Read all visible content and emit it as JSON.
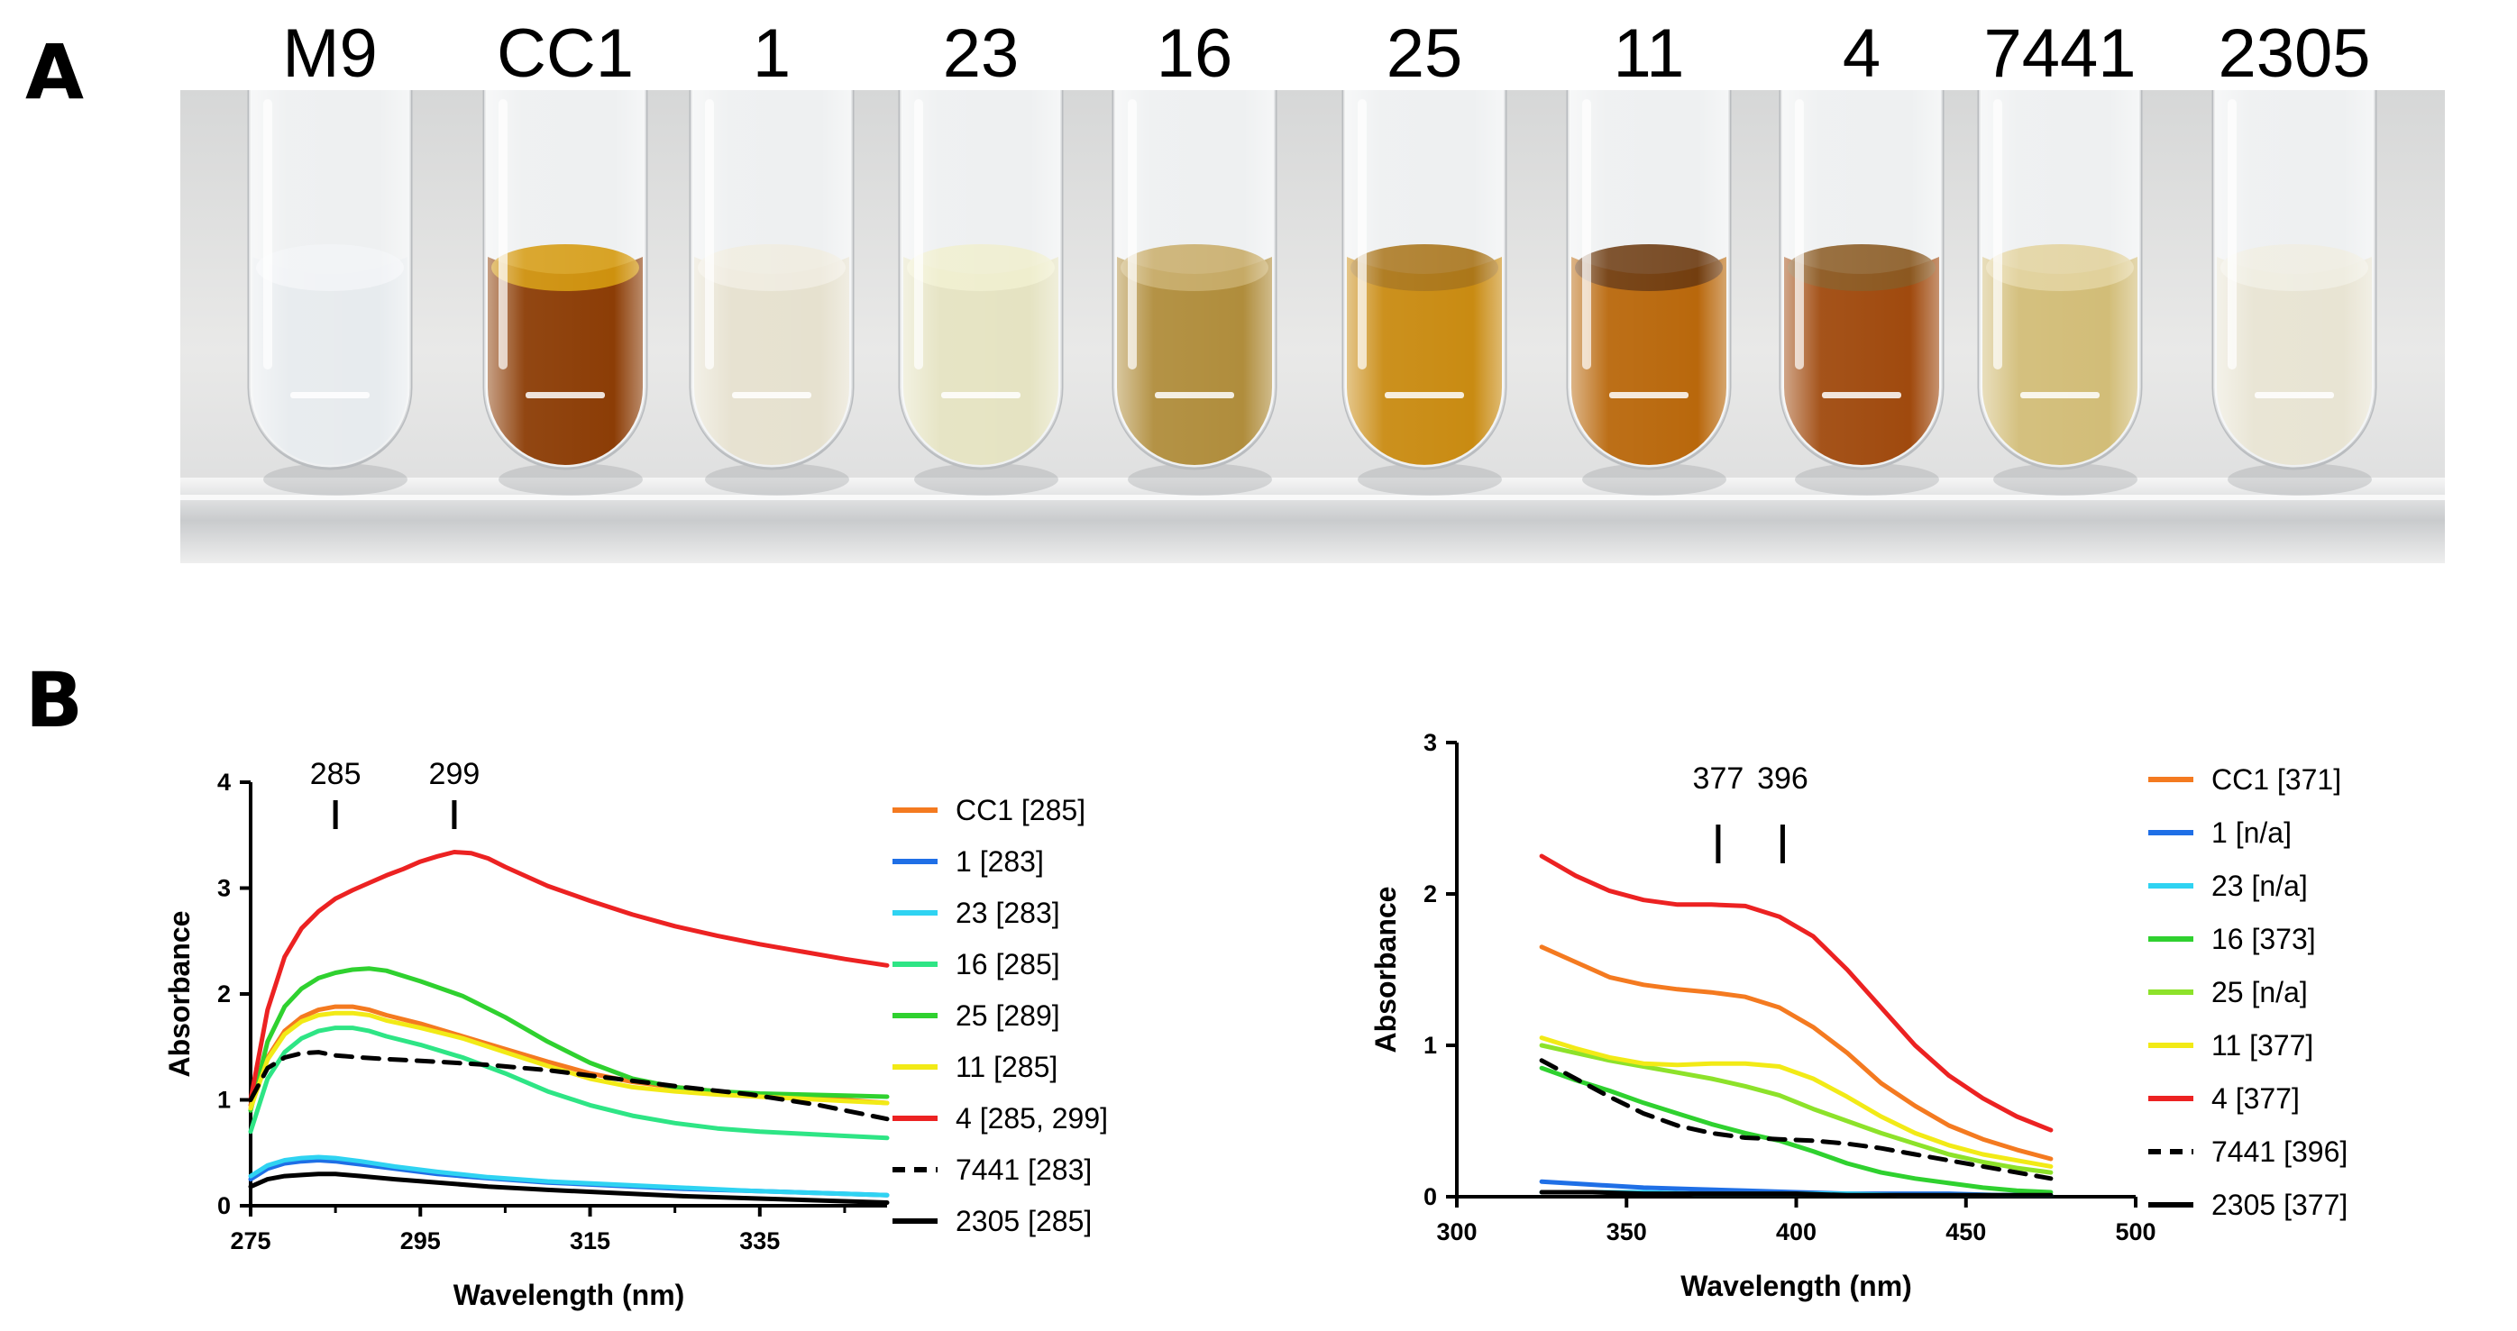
{
  "panel_a": {
    "letter": "A",
    "tubes": [
      {
        "label": "M9",
        "liquid": "#e7ebee",
        "top_color": "#f2f4f6"
      },
      {
        "label": "CC1",
        "liquid": "#8c3d06",
        "top_color": "#d59a10"
      },
      {
        "label": "1",
        "liquid": "#e6e1cf",
        "top_color": "#efece0"
      },
      {
        "label": "23",
        "liquid": "#e5e3c2",
        "top_color": "#efeecf"
      },
      {
        "label": "16",
        "liquid": "#b08d3c",
        "top_color": "#c9ad6a"
      },
      {
        "label": "25",
        "liquid": "#c98b12",
        "top_color": "#a8741b"
      },
      {
        "label": "11",
        "liquid": "#b9680c",
        "top_color": "#6b3a10"
      },
      {
        "label": "4",
        "liquid": "#a04a0e",
        "top_color": "#8a5a22"
      },
      {
        "label": "7441",
        "liquid": "#d2bd78",
        "top_color": "#e2d39e"
      },
      {
        "label": "2305",
        "liquid": "#e8e4d3",
        "top_color": "#efede2"
      }
    ]
  },
  "panel_b": {
    "letter": "B"
  },
  "chart_data": [
    {
      "type": "line",
      "xlabel": "Wavelength (nm)",
      "ylabel": "Absorbance",
      "xlim": [
        275,
        350
      ],
      "ylim": [
        0,
        4
      ],
      "xticks": [
        "275",
        "295",
        "315",
        "335"
      ],
      "yticks": [
        "0",
        "1",
        "2",
        "3",
        "4"
      ],
      "peak_markers": [
        {
          "x": 285,
          "label": "285"
        },
        {
          "x": 299,
          "label": "299"
        }
      ],
      "legend_position": "right",
      "series": [
        {
          "name": "CC1 [285]",
          "color": "#f47a20",
          "dashed": false,
          "x": [
            275,
            277,
            279,
            281,
            283,
            285,
            287,
            289,
            291,
            295,
            300,
            305,
            310,
            315,
            320,
            325,
            330,
            335,
            340,
            345,
            350
          ],
          "y": [
            0.95,
            1.4,
            1.65,
            1.78,
            1.85,
            1.88,
            1.88,
            1.85,
            1.8,
            1.72,
            1.6,
            1.48,
            1.36,
            1.25,
            1.17,
            1.12,
            1.08,
            1.05,
            1.03,
            1.0,
            0.97
          ]
        },
        {
          "name": "1 [283]",
          "color": "#1f6fe6",
          "dashed": false,
          "x": [
            275,
            277,
            279,
            281,
            283,
            285,
            288,
            292,
            297,
            303,
            310,
            318,
            326,
            334,
            342,
            350
          ],
          "y": [
            0.25,
            0.35,
            0.4,
            0.42,
            0.43,
            0.42,
            0.39,
            0.35,
            0.3,
            0.26,
            0.22,
            0.19,
            0.16,
            0.14,
            0.12,
            0.1
          ]
        },
        {
          "name": "23 [283]",
          "color": "#2fd3f2",
          "dashed": false,
          "x": [
            275,
            277,
            279,
            281,
            283,
            285,
            288,
            292,
            297,
            303,
            310,
            318,
            326,
            334,
            342,
            350
          ],
          "y": [
            0.28,
            0.38,
            0.43,
            0.45,
            0.46,
            0.45,
            0.42,
            0.37,
            0.32,
            0.27,
            0.23,
            0.2,
            0.17,
            0.14,
            0.12,
            0.1
          ]
        },
        {
          "name": "16 [285]",
          "color": "#2ee585",
          "dashed": false,
          "x": [
            275,
            277,
            279,
            281,
            283,
            285,
            287,
            289,
            291,
            295,
            300,
            305,
            310,
            315,
            320,
            325,
            330,
            335,
            340,
            345,
            350
          ],
          "y": [
            0.7,
            1.2,
            1.45,
            1.58,
            1.65,
            1.68,
            1.68,
            1.65,
            1.6,
            1.52,
            1.4,
            1.25,
            1.08,
            0.95,
            0.85,
            0.78,
            0.73,
            0.7,
            0.68,
            0.66,
            0.64
          ]
        },
        {
          "name": "25 [289]",
          "color": "#2fd12f",
          "dashed": false,
          "x": [
            275,
            277,
            279,
            281,
            283,
            285,
            287,
            289,
            291,
            295,
            300,
            305,
            310,
            315,
            320,
            325,
            330,
            335,
            340,
            345,
            350
          ],
          "y": [
            0.9,
            1.55,
            1.88,
            2.05,
            2.15,
            2.2,
            2.23,
            2.24,
            2.22,
            2.12,
            1.98,
            1.78,
            1.55,
            1.35,
            1.2,
            1.12,
            1.08,
            1.06,
            1.05,
            1.04,
            1.03
          ]
        },
        {
          "name": "11 [285]",
          "color": "#f2ea16",
          "dashed": false,
          "x": [
            275,
            277,
            279,
            281,
            283,
            285,
            287,
            289,
            291,
            295,
            300,
            305,
            310,
            315,
            320,
            325,
            330,
            335,
            340,
            345,
            350
          ],
          "y": [
            0.92,
            1.38,
            1.62,
            1.74,
            1.8,
            1.82,
            1.82,
            1.8,
            1.75,
            1.68,
            1.58,
            1.45,
            1.32,
            1.2,
            1.12,
            1.08,
            1.05,
            1.03,
            1.01,
            0.99,
            0.97
          ]
        },
        {
          "name": "4 [285, 299]",
          "color": "#ec2222",
          "dashed": false,
          "x": [
            275,
            277,
            279,
            281,
            283,
            285,
            287,
            289,
            291,
            293,
            295,
            297,
            299,
            301,
            303,
            305,
            310,
            315,
            320,
            325,
            330,
            335,
            340,
            345,
            350
          ],
          "y": [
            1.0,
            1.85,
            2.35,
            2.62,
            2.78,
            2.9,
            2.98,
            3.05,
            3.12,
            3.18,
            3.25,
            3.3,
            3.34,
            3.33,
            3.28,
            3.2,
            3.02,
            2.88,
            2.75,
            2.64,
            2.55,
            2.47,
            2.4,
            2.33,
            2.27
          ]
        },
        {
          "name": "7441 [283]",
          "color": "#000000",
          "dashed": true,
          "x": [
            275,
            277,
            279,
            281,
            283,
            285,
            288,
            292,
            297,
            303,
            310,
            318,
            326,
            334,
            342,
            350
          ],
          "y": [
            1.0,
            1.3,
            1.4,
            1.44,
            1.45,
            1.42,
            1.4,
            1.38,
            1.36,
            1.33,
            1.28,
            1.2,
            1.12,
            1.05,
            0.95,
            0.82
          ]
        },
        {
          "name": "2305 [285]",
          "color": "#000000",
          "dashed": false,
          "x": [
            275,
            277,
            279,
            281,
            283,
            285,
            288,
            292,
            297,
            303,
            310,
            318,
            326,
            334,
            342,
            350
          ],
          "y": [
            0.18,
            0.25,
            0.28,
            0.29,
            0.3,
            0.3,
            0.28,
            0.25,
            0.22,
            0.18,
            0.15,
            0.12,
            0.09,
            0.07,
            0.05,
            0.03
          ]
        }
      ]
    },
    {
      "type": "line",
      "xlabel": "Wavelength (nm)",
      "ylabel": "Absorbance",
      "xlim": [
        300,
        500
      ],
      "ylim": [
        0,
        3
      ],
      "xticks": [
        "300",
        "350",
        "400",
        "450",
        "500"
      ],
      "yticks": [
        "0",
        "1",
        "2",
        "3"
      ],
      "peak_markers": [
        {
          "x": 377,
          "label": "377"
        },
        {
          "x": 396,
          "label": "396"
        }
      ],
      "legend_position": "right",
      "series": [
        {
          "name": "CC1 [371]",
          "color": "#f47a20",
          "dashed": false,
          "x": [
            325,
            335,
            345,
            355,
            365,
            375,
            385,
            395,
            405,
            415,
            425,
            435,
            445,
            455,
            465,
            475
          ],
          "y": [
            1.65,
            1.55,
            1.45,
            1.4,
            1.37,
            1.35,
            1.32,
            1.25,
            1.12,
            0.95,
            0.75,
            0.6,
            0.47,
            0.38,
            0.31,
            0.25
          ]
        },
        {
          "name": "1 [n/a]",
          "color": "#1f6fe6",
          "dashed": false,
          "x": [
            325,
            340,
            355,
            370,
            385,
            400,
            415,
            430,
            445,
            460,
            475
          ],
          "y": [
            0.1,
            0.08,
            0.06,
            0.05,
            0.04,
            0.03,
            0.02,
            0.02,
            0.02,
            0.01,
            0.01
          ]
        },
        {
          "name": "23 [n/a]",
          "color": "#2fd3f2",
          "dashed": false,
          "x": [
            325,
            340,
            355,
            370,
            385,
            400,
            415,
            430,
            445,
            460,
            475
          ],
          "y": [
            0.03,
            0.03,
            0.03,
            0.02,
            0.02,
            0.02,
            0.02,
            0.01,
            0.01,
            0.01,
            0.01
          ]
        },
        {
          "name": "16 [373]",
          "color": "#2fd12f",
          "dashed": false,
          "x": [
            325,
            335,
            345,
            355,
            365,
            375,
            385,
            395,
            405,
            415,
            425,
            435,
            445,
            455,
            465,
            475
          ],
          "y": [
            0.85,
            0.77,
            0.7,
            0.62,
            0.55,
            0.48,
            0.42,
            0.37,
            0.3,
            0.22,
            0.16,
            0.12,
            0.09,
            0.06,
            0.04,
            0.03
          ]
        },
        {
          "name": "25 [n/a]",
          "color": "#8de22a",
          "dashed": false,
          "x": [
            325,
            335,
            345,
            355,
            365,
            375,
            385,
            395,
            405,
            415,
            425,
            435,
            445,
            455,
            465,
            475
          ],
          "y": [
            1.0,
            0.95,
            0.9,
            0.86,
            0.82,
            0.78,
            0.73,
            0.67,
            0.58,
            0.5,
            0.42,
            0.35,
            0.28,
            0.23,
            0.19,
            0.16
          ]
        },
        {
          "name": "11 [377]",
          "color": "#f2ea16",
          "dashed": false,
          "x": [
            325,
            335,
            345,
            355,
            365,
            375,
            385,
            395,
            405,
            415,
            425,
            435,
            445,
            455,
            465,
            475
          ],
          "y": [
            1.05,
            0.98,
            0.92,
            0.88,
            0.87,
            0.88,
            0.88,
            0.86,
            0.78,
            0.66,
            0.53,
            0.42,
            0.34,
            0.28,
            0.24,
            0.2
          ]
        },
        {
          "name": "4 [377]",
          "color": "#ec2222",
          "dashed": false,
          "x": [
            325,
            335,
            345,
            355,
            365,
            375,
            385,
            395,
            405,
            415,
            425,
            435,
            445,
            455,
            465,
            475
          ],
          "y": [
            2.25,
            2.12,
            2.02,
            1.96,
            1.93,
            1.93,
            1.92,
            1.85,
            1.72,
            1.5,
            1.25,
            1.0,
            0.8,
            0.65,
            0.53,
            0.44
          ]
        },
        {
          "name": "7441 [396]",
          "color": "#000000",
          "dashed": true,
          "x": [
            325,
            335,
            345,
            355,
            365,
            375,
            385,
            395,
            405,
            415,
            425,
            435,
            445,
            455,
            465,
            475
          ],
          "y": [
            0.9,
            0.78,
            0.66,
            0.55,
            0.47,
            0.42,
            0.39,
            0.38,
            0.37,
            0.35,
            0.32,
            0.28,
            0.24,
            0.2,
            0.16,
            0.12
          ]
        },
        {
          "name": "2305 [377]",
          "color": "#000000",
          "dashed": false,
          "x": [
            325,
            340,
            355,
            370,
            385,
            400,
            415,
            430,
            445,
            460,
            475
          ],
          "y": [
            0.03,
            0.03,
            0.02,
            0.02,
            0.02,
            0.02,
            0.01,
            0.01,
            0.01,
            0.01,
            0.01
          ]
        }
      ]
    }
  ]
}
